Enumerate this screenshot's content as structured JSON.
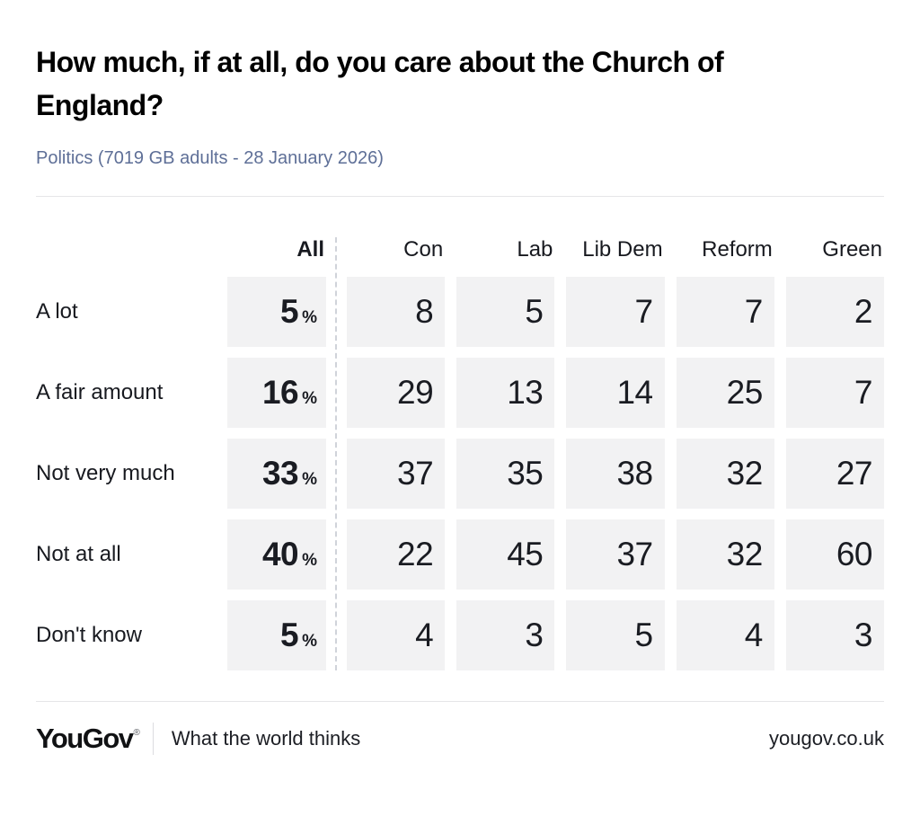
{
  "header": {
    "title": "How much, if at all, do you care about the Church of England?",
    "subtitle": "Politics (7019 GB adults - 28 January 2026)"
  },
  "table": {
    "columns": {
      "all": "All",
      "parties": [
        "Con",
        "Lab",
        "Lib Dem",
        "Reform",
        "Green"
      ]
    },
    "percent_sign": "%",
    "rows": [
      {
        "label": "A lot",
        "all": "5",
        "values": [
          "8",
          "5",
          "7",
          "7",
          "2"
        ]
      },
      {
        "label": "A fair amount",
        "all": "16",
        "values": [
          "29",
          "13",
          "14",
          "25",
          "7"
        ]
      },
      {
        "label": "Not very much",
        "all": "33",
        "values": [
          "37",
          "35",
          "38",
          "32",
          "27"
        ]
      },
      {
        "label": "Not at all",
        "all": "40",
        "values": [
          "22",
          "45",
          "37",
          "32",
          "60"
        ]
      },
      {
        "label": "Don't know",
        "all": "5",
        "values": [
          "4",
          "3",
          "5",
          "4",
          "3"
        ]
      }
    ]
  },
  "footer": {
    "logo": "YouGov",
    "registered": "®",
    "tagline": "What the world thinks",
    "url": "yougov.co.uk"
  },
  "colors": {
    "subtitle_blue": "#5e6f97",
    "cell_background": "#f2f2f3",
    "divider": "#e5e5e8",
    "text": "#17191f"
  },
  "chart_data": {
    "type": "table",
    "title": "How much, if at all, do you care about the Church of England?",
    "subtitle": "Politics (7019 GB adults - 28 January 2026)",
    "unit": "percent",
    "columns": [
      "All",
      "Con",
      "Lab",
      "Lib Dem",
      "Reform",
      "Green"
    ],
    "row_categories": [
      "A lot",
      "A fair amount",
      "Not very much",
      "Not at all",
      "Don't know"
    ],
    "values": [
      [
        5,
        8,
        5,
        7,
        7,
        2
      ],
      [
        16,
        29,
        13,
        14,
        25,
        7
      ],
      [
        33,
        37,
        35,
        38,
        32,
        27
      ],
      [
        40,
        22,
        45,
        37,
        32,
        60
      ],
      [
        5,
        4,
        3,
        5,
        4,
        3
      ]
    ]
  }
}
